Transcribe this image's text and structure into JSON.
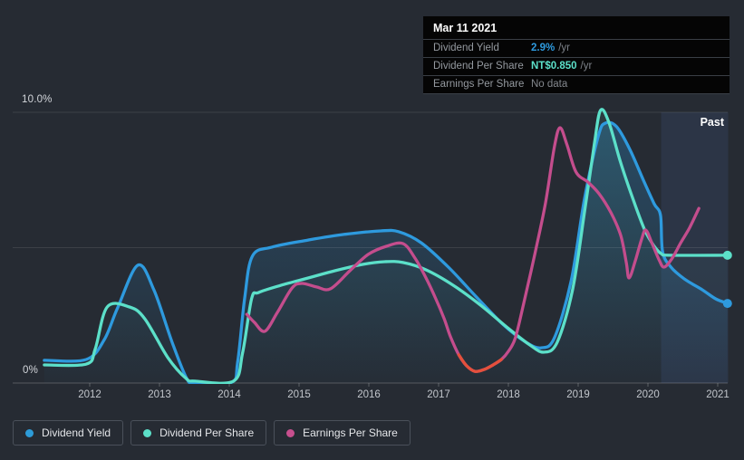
{
  "page": {
    "background": "#262b33"
  },
  "past_label": "Past",
  "axis": {
    "y_top_label": "10.0%",
    "y_bottom_label": "0%",
    "years": [
      2012,
      2013,
      2014,
      2015,
      2016,
      2017,
      2018,
      2019,
      2020,
      2021
    ]
  },
  "tooltip": {
    "title": "Mar 11 2021",
    "rows": [
      {
        "label": "Dividend Yield",
        "value": "2.9%",
        "suffix": "/yr",
        "color": "#2e9ade",
        "muted": false
      },
      {
        "label": "Dividend Per Share",
        "value": "NT$0.850",
        "suffix": "/yr",
        "color": "#5ce0c9",
        "muted": false
      },
      {
        "label": "Earnings Per Share",
        "value": "No data",
        "suffix": "",
        "color": "#84888e",
        "muted": true
      }
    ]
  },
  "legend": [
    {
      "label": "Dividend Yield",
      "color": "#2d9bd8"
    },
    {
      "label": "Dividend Per Share",
      "color": "#5ce0c9"
    },
    {
      "label": "Earnings Per Share",
      "color": "#c74f8e"
    }
  ],
  "chart_data": {
    "type": "line",
    "title": "",
    "xlabel": "",
    "ylabel": "",
    "ylim": [
      0,
      10
    ],
    "x_range": [
      2011.35,
      2021.15
    ],
    "grid": "on",
    "grid_values": [
      0,
      5,
      10
    ],
    "y_tick_labels": {
      "10": "10.0%",
      "0": "0%"
    },
    "x_ticks": [
      2012,
      2013,
      2014,
      2015,
      2016,
      2017,
      2018,
      2019,
      2020,
      2021
    ],
    "legend_position": "bottom-left",
    "past_region": {
      "from": 2020.19,
      "to": 2021.15,
      "label": "Past",
      "color": "rgba(97,150,246,0.10)"
    },
    "series": [
      {
        "name": "Dividend Yield",
        "unit": "percent_per_year",
        "color": "#2e9ade",
        "fill_top": "rgba(47,155,224,0.30)",
        "fill_bottom": "rgba(47,155,224,0.02)",
        "end_dot": true,
        "points": [
          [
            2011.35,
            0.84
          ],
          [
            2011.95,
            0.87
          ],
          [
            2012.21,
            1.61
          ],
          [
            2012.4,
            2.78
          ],
          [
            2012.69,
            4.35
          ],
          [
            2012.92,
            3.44
          ],
          [
            2013.18,
            1.51
          ],
          [
            2013.39,
            0.17
          ],
          [
            2013.51,
            0.02
          ],
          [
            2014.03,
            0.02
          ],
          [
            2014.12,
            0.77
          ],
          [
            2014.22,
            3.11
          ],
          [
            2014.33,
            4.68
          ],
          [
            2014.61,
            5.02
          ],
          [
            2015.13,
            5.28
          ],
          [
            2015.65,
            5.49
          ],
          [
            2016.17,
            5.62
          ],
          [
            2016.43,
            5.59
          ],
          [
            2016.75,
            5.18
          ],
          [
            2017.14,
            4.28
          ],
          [
            2017.53,
            3.21
          ],
          [
            2017.92,
            2.17
          ],
          [
            2018.25,
            1.51
          ],
          [
            2018.47,
            1.3
          ],
          [
            2018.66,
            1.67
          ],
          [
            2018.9,
            3.78
          ],
          [
            2019.09,
            6.79
          ],
          [
            2019.29,
            9.13
          ],
          [
            2019.39,
            9.6
          ],
          [
            2019.55,
            9.47
          ],
          [
            2019.74,
            8.63
          ],
          [
            2019.94,
            7.46
          ],
          [
            2020.09,
            6.62
          ],
          [
            2020.18,
            6.19
          ],
          [
            2020.21,
            4.85
          ],
          [
            2020.33,
            4.28
          ],
          [
            2020.52,
            3.85
          ],
          [
            2020.78,
            3.44
          ],
          [
            2020.97,
            3.11
          ],
          [
            2021.14,
            2.94
          ]
        ]
      },
      {
        "name": "Dividend Per Share",
        "unit": "NT$_per_year_scaled",
        "color": "#5ce0c9",
        "fill_top": "rgba(92,224,201,0.09)",
        "fill_bottom": "rgba(92,224,201,0.0)",
        "end_dot": true,
        "points": [
          [
            2011.35,
            0.67
          ],
          [
            2011.95,
            0.7
          ],
          [
            2012.08,
            1.27
          ],
          [
            2012.25,
            2.81
          ],
          [
            2012.57,
            2.81
          ],
          [
            2012.79,
            2.37
          ],
          [
            2013.12,
            0.94
          ],
          [
            2013.38,
            0.17
          ],
          [
            2013.51,
            0.07
          ],
          [
            2014.06,
            0.07
          ],
          [
            2014.19,
            1.1
          ],
          [
            2014.32,
            3.11
          ],
          [
            2014.42,
            3.34
          ],
          [
            2014.74,
            3.61
          ],
          [
            2015.13,
            3.88
          ],
          [
            2015.52,
            4.15
          ],
          [
            2015.91,
            4.38
          ],
          [
            2016.23,
            4.48
          ],
          [
            2016.49,
            4.45
          ],
          [
            2016.82,
            4.18
          ],
          [
            2017.21,
            3.61
          ],
          [
            2017.6,
            2.88
          ],
          [
            2017.99,
            2.04
          ],
          [
            2018.31,
            1.4
          ],
          [
            2018.51,
            1.14
          ],
          [
            2018.7,
            1.51
          ],
          [
            2018.92,
            3.44
          ],
          [
            2019.09,
            6.29
          ],
          [
            2019.23,
            8.8
          ],
          [
            2019.32,
            10.07
          ],
          [
            2019.44,
            9.63
          ],
          [
            2019.61,
            8.13
          ],
          [
            2019.81,
            6.62
          ],
          [
            2019.96,
            5.62
          ],
          [
            2020.09,
            5.05
          ],
          [
            2020.19,
            4.78
          ],
          [
            2020.32,
            4.72
          ],
          [
            2021.14,
            4.72
          ]
        ]
      },
      {
        "name": "Earnings Per Share",
        "unit": "scaled",
        "color": "#c44d8d",
        "end_dot": false,
        "negative_segment": {
          "from": 2017.25,
          "to": 2017.93,
          "color": "#e5503c"
        },
        "points": [
          [
            2014.25,
            2.54
          ],
          [
            2014.36,
            2.24
          ],
          [
            2014.51,
            1.91
          ],
          [
            2014.69,
            2.61
          ],
          [
            2014.9,
            3.51
          ],
          [
            2015.04,
            3.68
          ],
          [
            2015.25,
            3.55
          ],
          [
            2015.45,
            3.48
          ],
          [
            2015.73,
            4.15
          ],
          [
            2015.99,
            4.75
          ],
          [
            2016.25,
            5.05
          ],
          [
            2016.49,
            5.15
          ],
          [
            2016.66,
            4.62
          ],
          [
            2016.82,
            3.88
          ],
          [
            2016.96,
            3.11
          ],
          [
            2017.08,
            2.37
          ],
          [
            2017.17,
            1.71
          ],
          [
            2017.29,
            1.04
          ],
          [
            2017.4,
            0.64
          ],
          [
            2017.52,
            0.43
          ],
          [
            2017.65,
            0.5
          ],
          [
            2017.78,
            0.67
          ],
          [
            2017.9,
            0.87
          ],
          [
            2018.0,
            1.17
          ],
          [
            2018.1,
            1.67
          ],
          [
            2018.22,
            2.94
          ],
          [
            2018.38,
            4.78
          ],
          [
            2018.53,
            6.62
          ],
          [
            2018.66,
            8.73
          ],
          [
            2018.74,
            9.43
          ],
          [
            2018.84,
            8.8
          ],
          [
            2018.97,
            7.79
          ],
          [
            2019.14,
            7.42
          ],
          [
            2019.3,
            6.99
          ],
          [
            2019.47,
            6.29
          ],
          [
            2019.61,
            5.45
          ],
          [
            2019.69,
            4.45
          ],
          [
            2019.73,
            3.88
          ],
          [
            2019.82,
            4.52
          ],
          [
            2019.91,
            5.32
          ],
          [
            2019.97,
            5.65
          ],
          [
            2020.06,
            5.15
          ],
          [
            2020.16,
            4.55
          ],
          [
            2020.23,
            4.28
          ],
          [
            2020.34,
            4.58
          ],
          [
            2020.47,
            5.18
          ],
          [
            2020.6,
            5.75
          ],
          [
            2020.73,
            6.45
          ]
        ]
      }
    ]
  }
}
